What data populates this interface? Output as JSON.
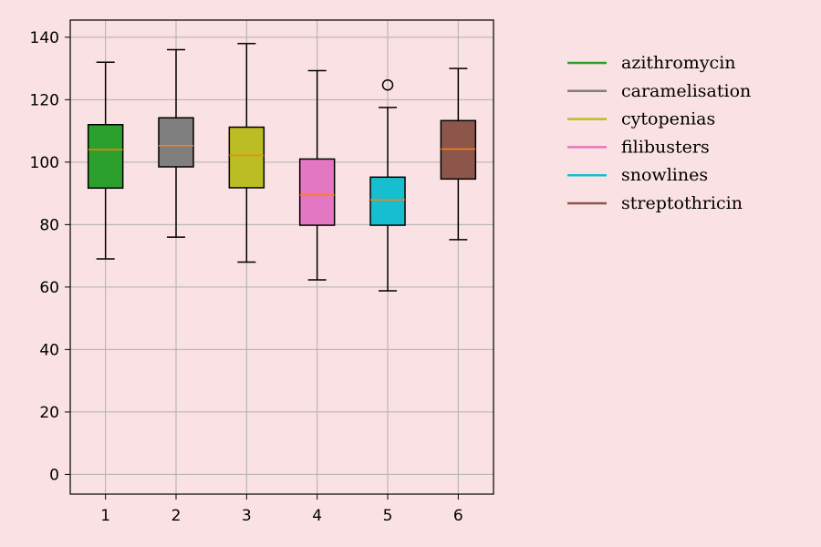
{
  "chart_data": {
    "type": "box",
    "categories": [
      "1",
      "2",
      "3",
      "4",
      "5",
      "6"
    ],
    "series": [
      {
        "name": "azithromycin",
        "color": "#2ca02c",
        "whisker_low": 69,
        "q1": 91.7,
        "median": 104,
        "q3": 112,
        "whisker_high": 132,
        "outliers": []
      },
      {
        "name": "caramelisation",
        "color": "#7f7f7f",
        "whisker_low": 76,
        "q1": 98.5,
        "median": 105.3,
        "q3": 114.2,
        "whisker_high": 136,
        "outliers": []
      },
      {
        "name": "cytopenias",
        "color": "#bcbd22",
        "whisker_low": 68,
        "q1": 91.8,
        "median": 102.2,
        "q3": 111.2,
        "whisker_high": 138,
        "outliers": []
      },
      {
        "name": "filibusters",
        "color": "#e377c2",
        "whisker_low": 62.3,
        "q1": 79.8,
        "median": 89.5,
        "q3": 101,
        "whisker_high": 129.3,
        "outliers": []
      },
      {
        "name": "snowlines",
        "color": "#17becf",
        "whisker_low": 58.8,
        "q1": 79.8,
        "median": 87.9,
        "q3": 95.2,
        "whisker_high": 117.5,
        "outliers": [
          124.7
        ]
      },
      {
        "name": "streptothricin",
        "color": "#8c564b",
        "whisker_low": 75.2,
        "q1": 94.6,
        "median": 104.2,
        "q3": 113.3,
        "whisker_high": 130,
        "outliers": []
      }
    ],
    "median_color": "#ff7f0e",
    "yticks": [
      0,
      20,
      40,
      60,
      80,
      100,
      120,
      140
    ],
    "ylim": [
      -6.3,
      145.5
    ],
    "xlim": [
      0.5,
      6.5
    ],
    "grid": true,
    "legend_position": "right",
    "title": "",
    "xlabel": "",
    "ylabel": ""
  }
}
